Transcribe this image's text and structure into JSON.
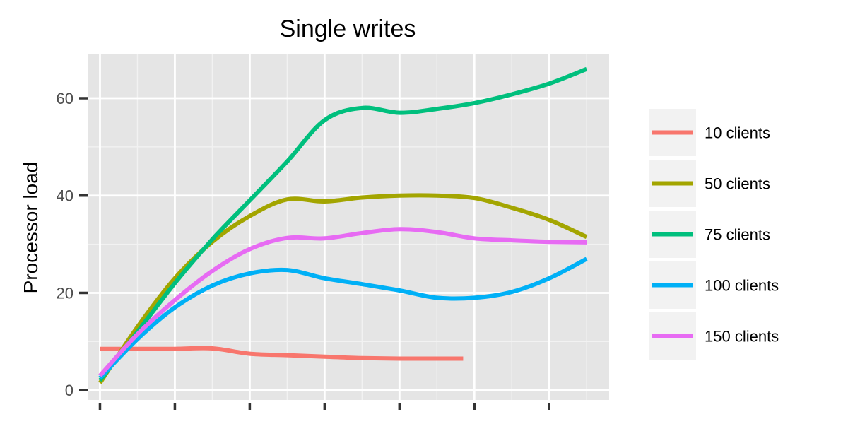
{
  "chart_data": {
    "type": "line",
    "title": "Single writes",
    "xlabel": "",
    "ylabel": "Processor load",
    "xlim": [
      0.67,
      14.6
    ],
    "ylim": [
      -2,
      69
    ],
    "x_tick_positions": [
      1,
      3,
      5,
      7,
      9,
      11,
      13
    ],
    "x_tick_labels": [
      "",
      "",
      "",
      "",
      "",
      "",
      ""
    ],
    "y_ticks": [
      0,
      20,
      40,
      60
    ],
    "grid": true,
    "legend_position": "right",
    "series": [
      {
        "name": "10 clients",
        "color": "#F8766D",
        "x": [
          1,
          2,
          3,
          4,
          5,
          6,
          7,
          8,
          9,
          10,
          10.7
        ],
        "y": [
          8.5,
          8.5,
          8.5,
          8.6,
          7.5,
          7.2,
          6.9,
          6.6,
          6.5,
          6.5,
          6.5
        ]
      },
      {
        "name": "50 clients",
        "color": "#A3A500",
        "x": [
          1,
          2,
          3,
          4,
          5,
          6,
          7,
          8,
          9,
          10,
          11,
          12,
          13,
          14
        ],
        "y": [
          1.5,
          13,
          23,
          30.5,
          35.8,
          39.2,
          38.8,
          39.6,
          40,
          40,
          39.5,
          37.5,
          35,
          31.5
        ]
      },
      {
        "name": "75 clients",
        "color": "#00BF7D",
        "x": [
          1,
          2,
          3,
          4,
          5,
          6,
          7,
          8,
          9,
          10,
          11,
          12,
          13,
          14
        ],
        "y": [
          2,
          12,
          22,
          31,
          39,
          47,
          55.5,
          58,
          57,
          57.8,
          59,
          60.8,
          63,
          66
        ]
      },
      {
        "name": "100 clients",
        "color": "#00B0F6",
        "x": [
          1,
          2,
          3,
          4,
          5,
          6,
          7,
          8,
          9,
          10,
          11,
          12,
          13,
          14
        ],
        "y": [
          2.5,
          10.5,
          17,
          21.5,
          24,
          24.7,
          23,
          21.8,
          20.5,
          19,
          19,
          20.2,
          23,
          27
        ]
      },
      {
        "name": "150 clients",
        "color": "#E76BF3",
        "x": [
          1,
          2,
          3,
          4,
          5,
          6,
          7,
          8,
          9,
          10,
          11,
          12,
          13,
          14
        ],
        "y": [
          3,
          11.5,
          18.5,
          24.5,
          29,
          31.3,
          31.2,
          32.3,
          33.1,
          32.5,
          31.2,
          30.8,
          30.5,
          30.4
        ]
      }
    ]
  }
}
